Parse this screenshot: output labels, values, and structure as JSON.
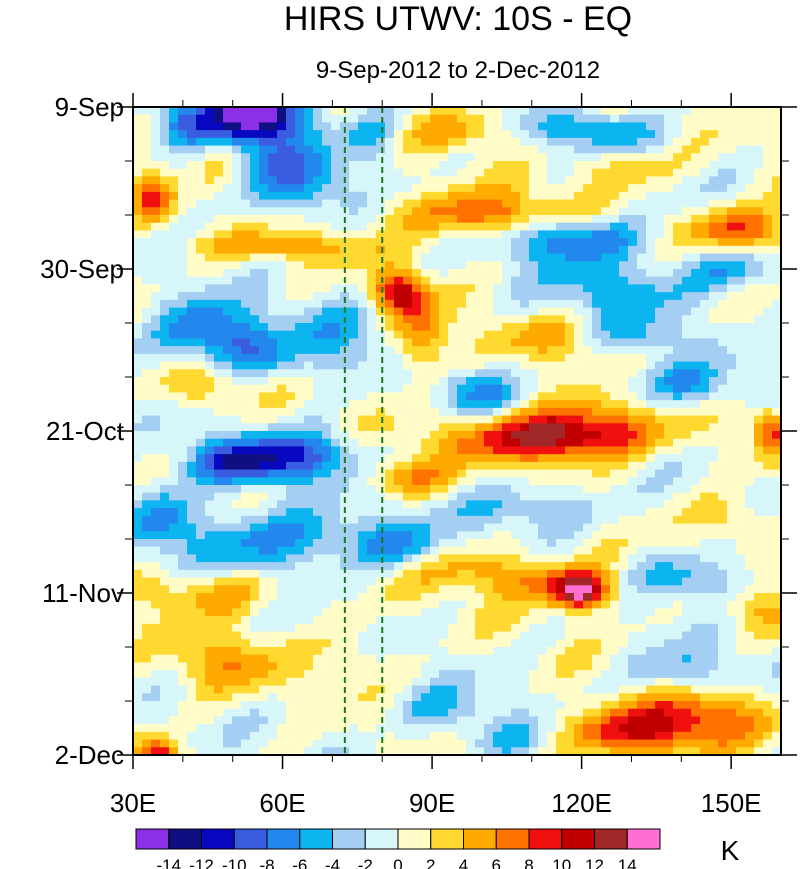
{
  "chart_data": {
    "type": "heatmap",
    "title": "HIRS UTWV: 10S - EQ",
    "subtitle": "9-Sep-2012 to 2-Dec-2012",
    "x_axis": {
      "range": [
        30,
        160
      ],
      "unit": "degrees East longitude",
      "ticks": [
        {
          "value": 30,
          "label": "30E"
        },
        {
          "value": 60,
          "label": "60E"
        },
        {
          "value": 90,
          "label": "90E"
        },
        {
          "value": 120,
          "label": "120E"
        },
        {
          "value": 150,
          "label": "150E"
        }
      ],
      "minor_ticks": [
        40,
        50,
        70,
        80,
        100,
        110,
        130,
        140
      ]
    },
    "y_axis": {
      "range_days": [
        0,
        84
      ],
      "unit": "days since 9-Sep-2012 (increasing downward)",
      "ticks": [
        {
          "value": 0,
          "label": "9-Sep"
        },
        {
          "value": 21,
          "label": "30-Sep"
        },
        {
          "value": 42,
          "label": "21-Oct"
        },
        {
          "value": 63,
          "label": "11-Nov"
        },
        {
          "value": 84,
          "label": "2-Dec"
        }
      ],
      "minor_ticks": [
        7,
        14,
        28,
        35,
        49,
        56,
        70,
        77
      ]
    },
    "reference_lines": [
      {
        "orientation": "vertical",
        "x": 72.5,
        "style": "dashed",
        "color": "#1a7a1a"
      },
      {
        "orientation": "vertical",
        "x": 80,
        "style": "dashed",
        "color": "#1a7a1a"
      }
    ],
    "colorbar": {
      "unit": "K",
      "levels": [
        -14,
        -12,
        -10,
        -8,
        -6,
        -4,
        -2,
        0,
        2,
        4,
        6,
        8,
        10,
        12,
        14
      ],
      "labels": [
        "-14",
        "-12",
        "-10",
        "-8",
        "-6",
        "-4",
        "-2",
        "0",
        "2",
        "4",
        "6",
        "8",
        "10",
        "12",
        "14"
      ],
      "colors": [
        "#8c30e8",
        "#0f0f82",
        "#0808c0",
        "#3a5ce0",
        "#2288ee",
        "#0cb4f0",
        "#a4cef2",
        "#d6f6fa",
        "#fffcc8",
        "#ffd830",
        "#ffaa00",
        "#ff7200",
        "#f01010",
        "#c00000",
        "#a02828",
        "#ff6ed2"
      ]
    },
    "features": [
      {
        "lon": 54,
        "day": 1,
        "lon_width": 10,
        "day_width": 3,
        "value": -12
      },
      {
        "lon": 40,
        "day": 2,
        "lon_width": 5,
        "day_width": 3,
        "value": -5
      },
      {
        "lon": 56,
        "day": 4,
        "lon_width": 12,
        "day_width": 7,
        "value": -6
      },
      {
        "lon": 47,
        "day": 7,
        "lon_width": 5,
        "day_width": 3,
        "value": 5
      },
      {
        "lon": 34,
        "day": 12,
        "lon_width": 4,
        "day_width": 3,
        "value": 7
      },
      {
        "lon": 78,
        "day": 4,
        "lon_width": 6,
        "day_width": 3,
        "value": -5
      },
      {
        "lon": 96,
        "day": 3,
        "lon_width": 10,
        "day_width": 2.5,
        "value": 5
      },
      {
        "lon": 122,
        "day": 3,
        "lon_width": 12,
        "day_width": 2.5,
        "value": -6
      },
      {
        "lon": 128,
        "day": 8,
        "lon_width": 10,
        "day_width": 2.5,
        "value": 4
      },
      {
        "lon": 65,
        "day": 10,
        "lon_width": 8,
        "day_width": 4,
        "value": -5
      },
      {
        "lon": 100,
        "day": 14,
        "lon_width": 18,
        "day_width": 3,
        "value": 8
      },
      {
        "lon": 118,
        "day": 17,
        "lon_width": 14,
        "day_width": 3,
        "value": -9
      },
      {
        "lon": 152,
        "day": 16,
        "lon_width": 10,
        "day_width": 3,
        "value": 9
      },
      {
        "lon": 60,
        "day": 18,
        "lon_width": 20,
        "day_width": 2,
        "value": 5
      },
      {
        "lon": 150,
        "day": 21,
        "lon_width": 10,
        "day_width": 3,
        "value": -6
      },
      {
        "lon": 127,
        "day": 24,
        "lon_width": 14,
        "day_width": 4,
        "value": -5
      },
      {
        "lon": 83,
        "day": 24,
        "lon_width": 5,
        "day_width": 3,
        "value": 10
      },
      {
        "lon": 88,
        "day": 30,
        "lon_width": 5,
        "day_width": 6,
        "value": 7
      },
      {
        "lon": 44,
        "day": 29,
        "lon_width": 10,
        "day_width": 4,
        "value": -8
      },
      {
        "lon": 54,
        "day": 32,
        "lon_width": 10,
        "day_width": 4,
        "value": -6
      },
      {
        "lon": 72,
        "day": 30,
        "lon_width": 10,
        "day_width": 5,
        "value": -4
      },
      {
        "lon": 116,
        "day": 30,
        "lon_width": 15,
        "day_width": 3,
        "value": 4
      },
      {
        "lon": 130,
        "day": 30,
        "lon_width": 10,
        "day_width": 2.5,
        "value": -5
      },
      {
        "lon": 45,
        "day": 36,
        "lon_width": 10,
        "day_width": 3,
        "value": 5
      },
      {
        "lon": 98,
        "day": 37,
        "lon_width": 8,
        "day_width": 3,
        "value": -6
      },
      {
        "lon": 140,
        "day": 36,
        "lon_width": 12,
        "day_width": 3,
        "value": -6
      },
      {
        "lon": 112,
        "day": 43,
        "lon_width": 18,
        "day_width": 3,
        "value": 11
      },
      {
        "lon": 122,
        "day": 41,
        "lon_width": 14,
        "day_width": 4,
        "value": 6
      },
      {
        "lon": 158,
        "day": 42,
        "lon_width": 4,
        "day_width": 3,
        "value": 8
      },
      {
        "lon": 52,
        "day": 46,
        "lon_width": 12,
        "day_width": 3,
        "value": -11
      },
      {
        "lon": 66,
        "day": 45,
        "lon_width": 10,
        "day_width": 3,
        "value": -6
      },
      {
        "lon": 85,
        "day": 48,
        "lon_width": 8,
        "day_width": 2.5,
        "value": 6
      },
      {
        "lon": 36,
        "day": 53,
        "lon_width": 6,
        "day_width": 4,
        "value": -6
      },
      {
        "lon": 110,
        "day": 52,
        "lon_width": 14,
        "day_width": 3,
        "value": -5
      },
      {
        "lon": 150,
        "day": 53,
        "lon_width": 8,
        "day_width": 3,
        "value": 4
      },
      {
        "lon": 60,
        "day": 56,
        "lon_width": 20,
        "day_width": 4,
        "value": -7
      },
      {
        "lon": 84,
        "day": 57,
        "lon_width": 8,
        "day_width": 3,
        "value": -5
      },
      {
        "lon": 118,
        "day": 62,
        "lon_width": 12,
        "day_width": 3,
        "value": 7
      },
      {
        "lon": 120,
        "day": 63,
        "lon_width": 5,
        "day_width": 2,
        "value": 10
      },
      {
        "lon": 100,
        "day": 60,
        "lon_width": 14,
        "day_width": 3,
        "value": 5
      },
      {
        "lon": 142,
        "day": 61,
        "lon_width": 12,
        "day_width": 3,
        "value": -6
      },
      {
        "lon": 45,
        "day": 63,
        "lon_width": 14,
        "day_width": 3,
        "value": 5
      },
      {
        "lon": 155,
        "day": 65,
        "lon_width": 8,
        "day_width": 3,
        "value": 4
      },
      {
        "lon": 48,
        "day": 72,
        "lon_width": 12,
        "day_width": 4,
        "value": 5
      },
      {
        "lon": 74,
        "day": 71,
        "lon_width": 6,
        "day_width": 4,
        "value": 3
      },
      {
        "lon": 140,
        "day": 73,
        "lon_width": 10,
        "day_width": 3,
        "value": -5
      },
      {
        "lon": 92,
        "day": 78,
        "lon_width": 10,
        "day_width": 3,
        "value": -4
      },
      {
        "lon": 130,
        "day": 81,
        "lon_width": 14,
        "day_width": 3.5,
        "value": 10
      },
      {
        "lon": 145,
        "day": 79,
        "lon_width": 12,
        "day_width": 4,
        "value": 6
      },
      {
        "lon": 35,
        "day": 84,
        "lon_width": 4,
        "day_width": 2,
        "value": 10
      },
      {
        "lon": 105,
        "day": 82,
        "lon_width": 10,
        "day_width": 3,
        "value": -4
      }
    ]
  }
}
